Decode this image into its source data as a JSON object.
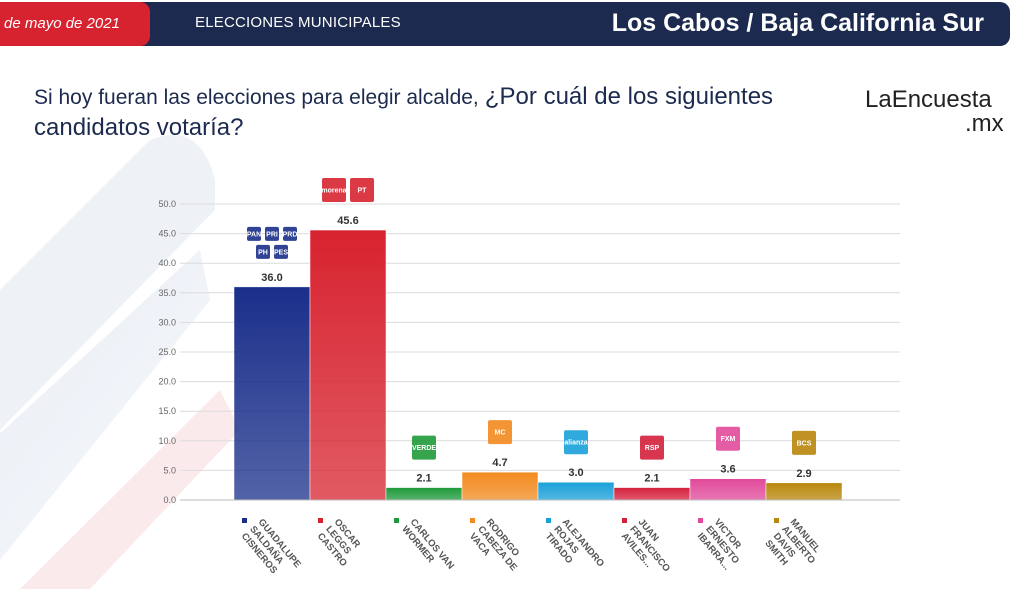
{
  "header": {
    "date": "de mayo de 2021",
    "section": "ELECCIONES MUNICIPALES",
    "place": "Los Cabos / Baja California Sur"
  },
  "question": {
    "line_part1": "Si hoy fueran las elecciones para elegir alcalde,",
    "line_part2": "¿Por cuál de los siguientes candidatos votaría?"
  },
  "brand": {
    "name": "LaEncuesta",
    "suffix": ".mx"
  },
  "colors": {
    "header_bg": "#1b2a4e",
    "accent": "#d7232f"
  },
  "chart_data": {
    "type": "bar",
    "ylim": [
      0,
      50
    ],
    "yticks": [
      "0.0",
      "5.0",
      "10.0",
      "15.0",
      "20.0",
      "25.0",
      "30.0",
      "35.0",
      "40.0",
      "45.0",
      "50.0"
    ],
    "grid": true,
    "categories": [
      "GUADALUPE SALDAÑA CISNEROS",
      "OSCAR LEGGS CASTRO",
      "CARLOS VAN WORMER",
      "RODRIGO CABEZA DE VACA",
      "ALEJANDRO ROJAS TIRADO",
      "JUAN FRANCISCO AVILES...",
      "VICTOR ERNESTO IBARRA...",
      "MANUEL ALBERTO DAVIS SMITH"
    ],
    "value_labels": [
      "36.0",
      "45.6",
      "2.1",
      "4.7",
      "3.0",
      "2.1",
      "3.6",
      "2.9"
    ],
    "values": [
      36.0,
      45.6,
      2.1,
      4.7,
      3.0,
      2.1,
      3.6,
      2.9
    ],
    "colors": [
      "#1a2f8a",
      "#d7232f",
      "#1f9a3a",
      "#f28a1e",
      "#1aa0d8",
      "#d4203c",
      "#e04a9a",
      "#b8860b"
    ],
    "party_logos": [
      [
        "PAN",
        "PRI",
        "PRD",
        "PH",
        "PES"
      ],
      [
        "morena",
        "PT"
      ],
      [
        "VERDE"
      ],
      [
        "MC"
      ],
      [
        "alianza"
      ],
      [
        "RSP"
      ],
      [
        "FXM"
      ],
      [
        "BCS"
      ]
    ]
  }
}
